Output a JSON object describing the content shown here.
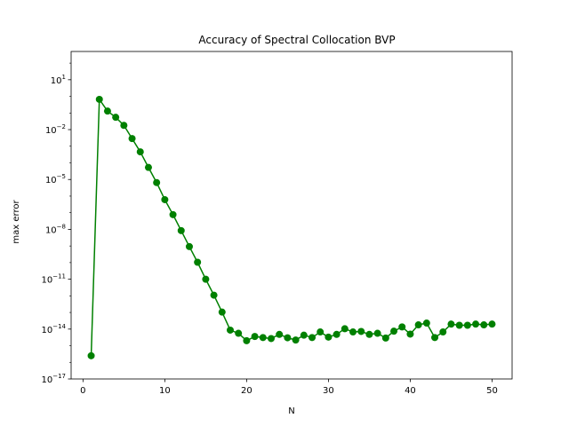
{
  "chart_data": {
    "type": "line",
    "title": "Accuracy of Spectral Collocation BVP",
    "xlabel": "N",
    "ylabel": "max error",
    "yscale": "log",
    "xlim": [
      -1.45,
      52.45
    ],
    "ylim_exp": [
      -17,
      2.7
    ],
    "xticks": [
      0,
      10,
      20,
      30,
      40,
      50
    ],
    "yticks_exp": [
      -17,
      -14,
      -11,
      -8,
      -5,
      -2,
      1
    ],
    "ytick_labels": [
      {
        "base": "10",
        "exp": "−17"
      },
      {
        "base": "10",
        "exp": "−14"
      },
      {
        "base": "10",
        "exp": "−11"
      },
      {
        "base": "10",
        "exp": "−8"
      },
      {
        "base": "10",
        "exp": "−5"
      },
      {
        "base": "10",
        "exp": "−2"
      },
      {
        "base": "10",
        "exp": "1"
      }
    ],
    "grid": false,
    "line_color": "#008000",
    "marker": "circle",
    "series": [
      {
        "x": [
          1,
          2,
          3,
          4,
          5,
          6,
          7,
          8,
          9,
          10,
          11,
          12,
          13,
          14,
          15,
          16,
          17,
          18,
          19,
          20,
          21,
          22,
          23,
          24,
          25,
          26,
          27,
          28,
          29,
          30,
          31,
          32,
          33,
          34,
          35,
          36,
          37,
          38,
          39,
          40,
          41,
          42,
          43,
          44,
          45,
          46,
          47,
          48,
          49,
          50
        ],
        "y": [
          2.5e-16,
          0.66,
          0.13,
          0.055,
          0.018,
          0.0029,
          0.00046,
          5.3e-05,
          6.5e-06,
          6.1e-07,
          7.7e-08,
          8.4e-09,
          9.2e-10,
          1.05e-10,
          1e-11,
          1.1e-12,
          1.05e-13,
          8.7e-15,
          5.6e-15,
          2e-15,
          3.6e-15,
          3.1e-15,
          2.7e-15,
          4.8e-15,
          3e-15,
          2.2e-15,
          4.3e-15,
          3.1e-15,
          6.7e-15,
          3.3e-15,
          4.8e-15,
          1.05e-14,
          6.7e-15,
          7.2e-15,
          4.8e-15,
          5.6e-15,
          2.9e-15,
          7.5e-15,
          1.35e-14,
          5e-15,
          1.8e-14,
          2.3e-14,
          3.1e-15,
          6.7e-15,
          2e-14,
          1.7e-14,
          1.7e-14,
          2e-14,
          1.8e-14,
          2e-14
        ]
      }
    ]
  }
}
